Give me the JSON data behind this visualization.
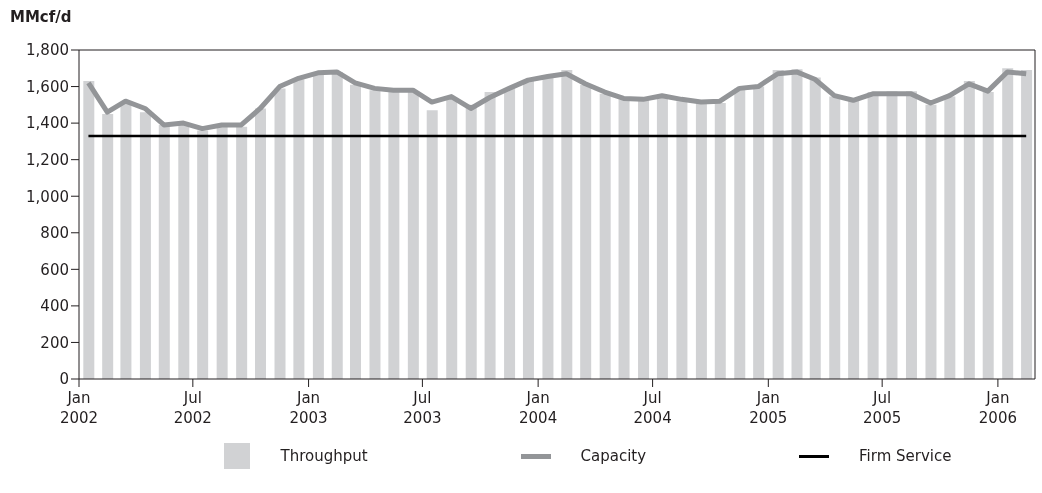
{
  "chart_data": {
    "type": "bar",
    "ylabel": "MMcf/d",
    "x": [
      "2002-01-16",
      "2002-02-15",
      "2002-03-16",
      "2002-04-16",
      "2002-05-16",
      "2002-06-16",
      "2002-07-16",
      "2002-08-16",
      "2002-09-16",
      "2002-10-16",
      "2002-11-16",
      "2002-12-16",
      "2003-01-16",
      "2003-02-15",
      "2003-03-16",
      "2003-04-16",
      "2003-05-16",
      "2003-06-16",
      "2003-07-16",
      "2003-08-16",
      "2003-09-16",
      "2003-10-16",
      "2003-11-16",
      "2003-12-16",
      "2004-01-16",
      "2004-02-15",
      "2004-03-16",
      "2004-04-16",
      "2004-05-16",
      "2004-06-16",
      "2004-07-16",
      "2004-08-16",
      "2004-09-16",
      "2004-10-16",
      "2004-11-16",
      "2004-12-16",
      "2005-01-16",
      "2005-02-15",
      "2005-03-16",
      "2005-04-16",
      "2005-05-16",
      "2005-06-16",
      "2005-07-16",
      "2005-08-16",
      "2005-09-16",
      "2005-10-16",
      "2005-11-16",
      "2005-12-16",
      "2006-01-16",
      "2006-02-15"
    ],
    "series": [
      {
        "name": "Throughput",
        "color": "#d1d2d4",
        "values": [
          1630,
          1450,
          1510,
          1460,
          1390,
          1390,
          1360,
          1380,
          1380,
          1480,
          1590,
          1640,
          1680,
          1680,
          1610,
          1580,
          1570,
          1570,
          1470,
          1540,
          1500,
          1570,
          1590,
          1630,
          1650,
          1690,
          1610,
          1560,
          1530,
          1530,
          1545,
          1520,
          1510,
          1510,
          1590,
          1600,
          1690,
          1695,
          1650,
          1545,
          1525,
          1570,
          1575,
          1575,
          1500,
          1545,
          1630,
          1570,
          1700,
          1690
        ]
      },
      {
        "name": "Capacity",
        "type": "line",
        "color": "#939598",
        "values": [
          1620,
          1460,
          1520,
          1480,
          1390,
          1400,
          1370,
          1390,
          1390,
          1480,
          1600,
          1645,
          1675,
          1680,
          1620,
          1590,
          1580,
          1580,
          1515,
          1545,
          1480,
          1540,
          1590,
          1635,
          1655,
          1670,
          1615,
          1570,
          1535,
          1530,
          1550,
          1530,
          1515,
          1520,
          1590,
          1600,
          1670,
          1680,
          1640,
          1550,
          1525,
          1560,
          1560,
          1560,
          1510,
          1550,
          1615,
          1575,
          1680,
          1670
        ]
      },
      {
        "name": "Firm Service",
        "type": "line",
        "color": "#000000",
        "values": [
          1330,
          1330,
          1330,
          1330,
          1330,
          1330,
          1330,
          1330,
          1330,
          1330,
          1330,
          1330,
          1330,
          1330,
          1330,
          1330,
          1330,
          1330,
          1330,
          1330,
          1330,
          1330,
          1330,
          1330,
          1330,
          1330,
          1330,
          1330,
          1330,
          1330,
          1330,
          1330,
          1330,
          1330,
          1330,
          1330,
          1330,
          1330,
          1330,
          1330,
          1330,
          1330,
          1330,
          1330,
          1330,
          1330,
          1330,
          1330,
          1330,
          1330
        ]
      }
    ],
    "xlim": [
      "2002-01-01",
      "2006-03-01"
    ],
    "xticks": [
      {
        "value": "2002-01-01",
        "label": "Jan 2002"
      },
      {
        "value": "2002-07-01",
        "label": "Jul 2002"
      },
      {
        "value": "2003-01-01",
        "label": "Jan 2003"
      },
      {
        "value": "2003-07-01",
        "label": "Jul 2003"
      },
      {
        "value": "2004-01-01",
        "label": "Jan 2004"
      },
      {
        "value": "2004-07-01",
        "label": "Jul 2004"
      },
      {
        "value": "2005-01-01",
        "label": "Jan 2005"
      },
      {
        "value": "2005-07-01",
        "label": "Jul 2005"
      },
      {
        "value": "2006-01-01",
        "label": "Jan 2006"
      }
    ],
    "ylim": [
      0,
      1800
    ],
    "yticks": [
      {
        "value": 0,
        "label": "0"
      },
      {
        "value": 200,
        "label": "200"
      },
      {
        "value": 400,
        "label": "400"
      },
      {
        "value": 600,
        "label": "600"
      },
      {
        "value": 800,
        "label": "800"
      },
      {
        "value": 1000,
        "label": "1,000"
      },
      {
        "value": 1200,
        "label": "1,200"
      },
      {
        "value": 1400,
        "label": "1,400"
      },
      {
        "value": 1600,
        "label": "1,600"
      },
      {
        "value": 1800,
        "label": "1,800"
      }
    ],
    "grid": false,
    "legend": "bottom",
    "marker": "none",
    "line_style": "solid"
  }
}
